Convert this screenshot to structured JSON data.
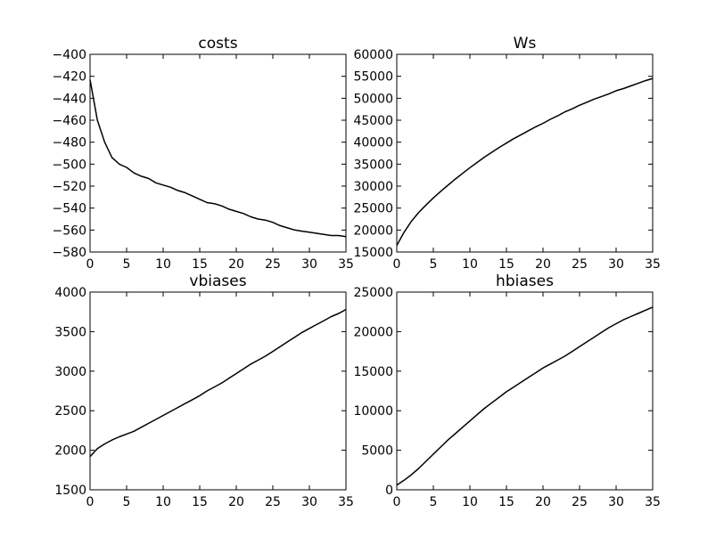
{
  "chart_data": [
    {
      "type": "line",
      "title": "costs",
      "xlabel": "",
      "ylabel": "",
      "xlim": [
        0,
        35
      ],
      "ylim": [
        -580,
        -400
      ],
      "x_ticks": [
        0,
        5,
        10,
        15,
        20,
        25,
        30,
        35
      ],
      "y_ticks": [
        -400,
        -420,
        -440,
        -460,
        -480,
        -500,
        -520,
        -540,
        -560,
        -580
      ],
      "x_tick_labels": [
        "0",
        "5",
        "10",
        "15",
        "20",
        "25",
        "30",
        "35"
      ],
      "y_tick_labels": [
        "−400",
        "−420",
        "−440",
        "−460",
        "−480",
        "−500",
        "−520",
        "−540",
        "−560",
        "−580"
      ],
      "grid": false,
      "series": [
        {
          "color": "#000000",
          "x": [
            0,
            1,
            2,
            3,
            4,
            5,
            6,
            7,
            8,
            9,
            10,
            11,
            12,
            13,
            14,
            15,
            16,
            17,
            18,
            19,
            20,
            21,
            22,
            23,
            24,
            25,
            26,
            27,
            28,
            29,
            30,
            31,
            32,
            33,
            34,
            35
          ],
          "y": [
            -423,
            -460,
            -480,
            -494,
            -500,
            -503,
            -508,
            -511,
            -513,
            -517,
            -519,
            -521,
            -524,
            -526,
            -529,
            -532,
            -535,
            -536,
            -538,
            -541,
            -543,
            -545,
            -548,
            -550,
            -551,
            -553,
            -556,
            -558,
            -560,
            -561,
            -562,
            -563,
            -564,
            -565,
            -565,
            -566
          ]
        }
      ]
    },
    {
      "type": "line",
      "title": "Ws",
      "xlabel": "",
      "ylabel": "",
      "xlim": [
        0,
        35
      ],
      "ylim": [
        15000,
        60000
      ],
      "x_ticks": [
        0,
        5,
        10,
        15,
        20,
        25,
        30,
        35
      ],
      "y_ticks": [
        60000,
        55000,
        50000,
        45000,
        40000,
        35000,
        30000,
        25000,
        20000,
        15000
      ],
      "x_tick_labels": [
        "0",
        "5",
        "10",
        "15",
        "20",
        "25",
        "30",
        "35"
      ],
      "y_tick_labels": [
        "60000",
        "55000",
        "50000",
        "45000",
        "40000",
        "35000",
        "30000",
        "25000",
        "20000",
        "15000"
      ],
      "grid": false,
      "series": [
        {
          "color": "#000000",
          "x": [
            0,
            1,
            2,
            3,
            4,
            5,
            6,
            7,
            8,
            9,
            10,
            11,
            12,
            13,
            14,
            15,
            16,
            17,
            18,
            19,
            20,
            21,
            22,
            23,
            24,
            25,
            26,
            27,
            28,
            29,
            30,
            31,
            32,
            33,
            34,
            35
          ],
          "y": [
            16500,
            19500,
            22000,
            24000,
            25700,
            27300,
            28800,
            30200,
            31600,
            32900,
            34200,
            35400,
            36600,
            37700,
            38800,
            39800,
            40800,
            41700,
            42600,
            43500,
            44300,
            45200,
            46000,
            46900,
            47600,
            48400,
            49100,
            49800,
            50400,
            51000,
            51700,
            52200,
            52800,
            53400,
            54000,
            54500
          ]
        }
      ]
    },
    {
      "type": "line",
      "title": "vbiases",
      "xlabel": "",
      "ylabel": "",
      "xlim": [
        0,
        35
      ],
      "ylim": [
        1500,
        4000
      ],
      "x_ticks": [
        0,
        5,
        10,
        15,
        20,
        25,
        30,
        35
      ],
      "y_ticks": [
        4000,
        3500,
        3000,
        2500,
        2000,
        1500
      ],
      "x_tick_labels": [
        "0",
        "5",
        "10",
        "15",
        "20",
        "25",
        "30",
        "35"
      ],
      "y_tick_labels": [
        "4000",
        "3500",
        "3000",
        "2500",
        "2000",
        "1500"
      ],
      "grid": false,
      "series": [
        {
          "color": "#000000",
          "x": [
            0,
            1,
            2,
            3,
            4,
            5,
            6,
            7,
            8,
            9,
            10,
            11,
            12,
            13,
            14,
            15,
            16,
            17,
            18,
            19,
            20,
            21,
            22,
            23,
            24,
            25,
            26,
            27,
            28,
            29,
            30,
            31,
            32,
            33,
            34,
            35
          ],
          "y": [
            1920,
            2020,
            2080,
            2130,
            2170,
            2205,
            2240,
            2290,
            2340,
            2390,
            2440,
            2490,
            2540,
            2590,
            2640,
            2690,
            2750,
            2800,
            2850,
            2910,
            2970,
            3030,
            3090,
            3140,
            3190,
            3250,
            3310,
            3370,
            3430,
            3490,
            3540,
            3590,
            3640,
            3690,
            3730,
            3780
          ]
        }
      ]
    },
    {
      "type": "line",
      "title": "hbiases",
      "xlabel": "",
      "ylabel": "",
      "xlim": [
        0,
        35
      ],
      "ylim": [
        0,
        25000
      ],
      "x_ticks": [
        0,
        5,
        10,
        15,
        20,
        25,
        30,
        35
      ],
      "y_ticks": [
        25000,
        20000,
        15000,
        10000,
        5000,
        0
      ],
      "x_tick_labels": [
        "0",
        "5",
        "10",
        "15",
        "20",
        "25",
        "30",
        "35"
      ],
      "y_tick_labels": [
        "25000",
        "20000",
        "15000",
        "10000",
        "5000",
        "0"
      ],
      "grid": false,
      "series": [
        {
          "color": "#000000",
          "x": [
            0,
            1,
            2,
            3,
            4,
            5,
            6,
            7,
            8,
            9,
            10,
            11,
            12,
            13,
            14,
            15,
            16,
            17,
            18,
            19,
            20,
            21,
            22,
            23,
            24,
            25,
            26,
            27,
            28,
            29,
            30,
            31,
            32,
            33,
            34,
            35
          ],
          "y": [
            600,
            1200,
            1900,
            2700,
            3600,
            4500,
            5400,
            6300,
            7100,
            7900,
            8700,
            9500,
            10300,
            11000,
            11700,
            12400,
            13000,
            13600,
            14200,
            14800,
            15400,
            15900,
            16400,
            16900,
            17500,
            18100,
            18700,
            19300,
            19900,
            20500,
            21000,
            21500,
            21900,
            22300,
            22700,
            23100
          ]
        }
      ]
    }
  ]
}
